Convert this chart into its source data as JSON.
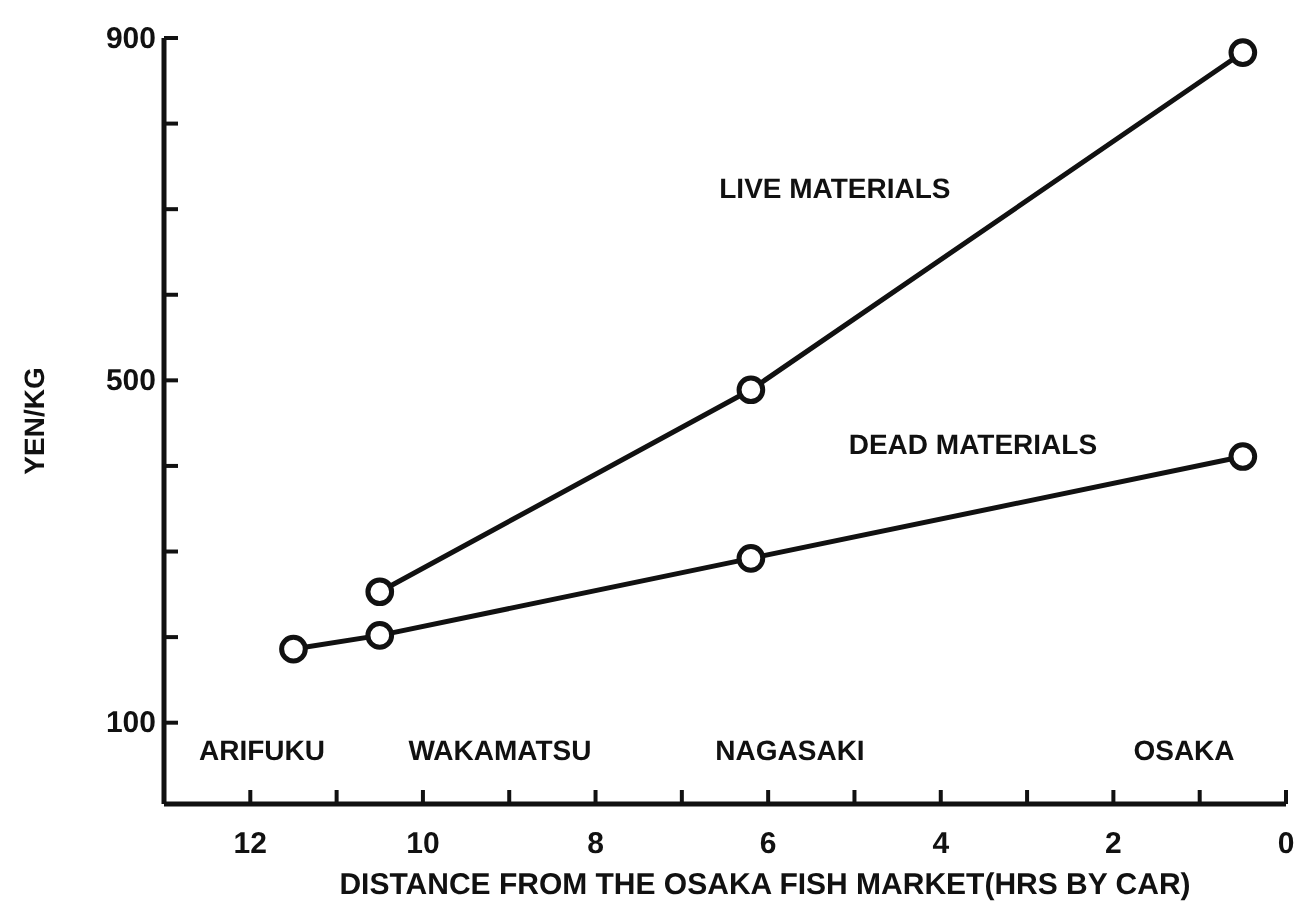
{
  "chart_data": {
    "type": "line",
    "xlabel": "DISTANCE FROM THE OSAKA FISH MARKET(HRS BY CAR)",
    "ylabel": "YEN/KG",
    "xlim": [
      13,
      0
    ],
    "ylim": [
      5,
      900
    ],
    "xticks": [
      12,
      {
        "value": 11,
        "label": null
      },
      10,
      {
        "value": 9,
        "label": null
      },
      8,
      {
        "value": 7,
        "label": null
      },
      6,
      {
        "value": 5,
        "label": null
      },
      4,
      {
        "value": 3,
        "label": null
      },
      2,
      {
        "value": 1,
        "label": null
      },
      0
    ],
    "yticks": [
      100,
      {
        "value": 200,
        "label": null
      },
      {
        "value": 300,
        "label": null
      },
      {
        "value": 400,
        "label": null
      },
      500,
      {
        "value": 600,
        "label": null
      },
      {
        "value": 700,
        "label": null
      },
      {
        "value": 800,
        "label": null
      },
      900
    ],
    "marker": "circle",
    "line_style": "solid",
    "grid": false,
    "legend": false,
    "series": [
      {
        "name": "LIVE MATERIALS",
        "color": "#111111",
        "x": [
          10.5,
          6.2,
          0.5
        ],
        "values": [
          253,
          489,
          883
        ]
      },
      {
        "name": "DEAD MATERIALS",
        "color": "#111111",
        "x": [
          11.5,
          10.5,
          6.2,
          0.5
        ],
        "values": [
          186,
          202,
          292,
          411
        ]
      }
    ],
    "annotations": [
      "ARIFUKU",
      "WAKAMATSU",
      "NAGASAKI",
      "OSAKA"
    ]
  }
}
